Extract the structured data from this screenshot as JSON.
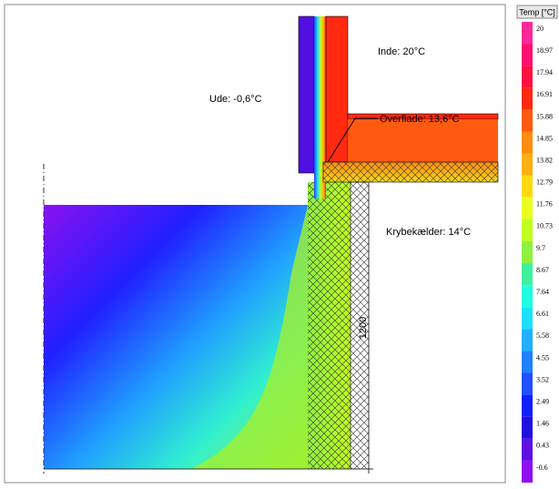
{
  "labels": {
    "inside": "Inde: 20°C",
    "outside": "Ude: -0,6°C",
    "surface": "Overflade: 13,6°C",
    "crawlspace": "Krybekælder: 14°C",
    "dimension": "1200"
  },
  "legend": {
    "title": "Temp [°C]",
    "items": [
      {
        "label": "20",
        "color": "#ff2a9a"
      },
      {
        "label": "18.97",
        "color": "#ff1070"
      },
      {
        "label": "17.94",
        "color": "#ff1040"
      },
      {
        "label": "16.91",
        "color": "#ff2a10"
      },
      {
        "label": "15.88",
        "color": "#ff5a10"
      },
      {
        "label": "14.85",
        "color": "#ff8c10"
      },
      {
        "label": "13.82",
        "color": "#ffb010"
      },
      {
        "label": "12.79",
        "color": "#ffd810"
      },
      {
        "label": "11.76",
        "color": "#e8ff20"
      },
      {
        "label": "10.73",
        "color": "#c0ff20"
      },
      {
        "label": "9.7",
        "color": "#90f040"
      },
      {
        "label": "8.67",
        "color": "#40f0a0"
      },
      {
        "label": "7.64",
        "color": "#20ffe0"
      },
      {
        "label": "6.61",
        "color": "#20e0ff"
      },
      {
        "label": "5.58",
        "color": "#20b0ff"
      },
      {
        "label": "4.55",
        "color": "#2080ff"
      },
      {
        "label": "3.52",
        "color": "#2050ff"
      },
      {
        "label": "2.49",
        "color": "#1020ff"
      },
      {
        "label": "1.46",
        "color": "#2010e0"
      },
      {
        "label": "0.43",
        "color": "#6010e0"
      },
      {
        "label": "-0.6",
        "color": "#9010f0"
      }
    ]
  }
}
